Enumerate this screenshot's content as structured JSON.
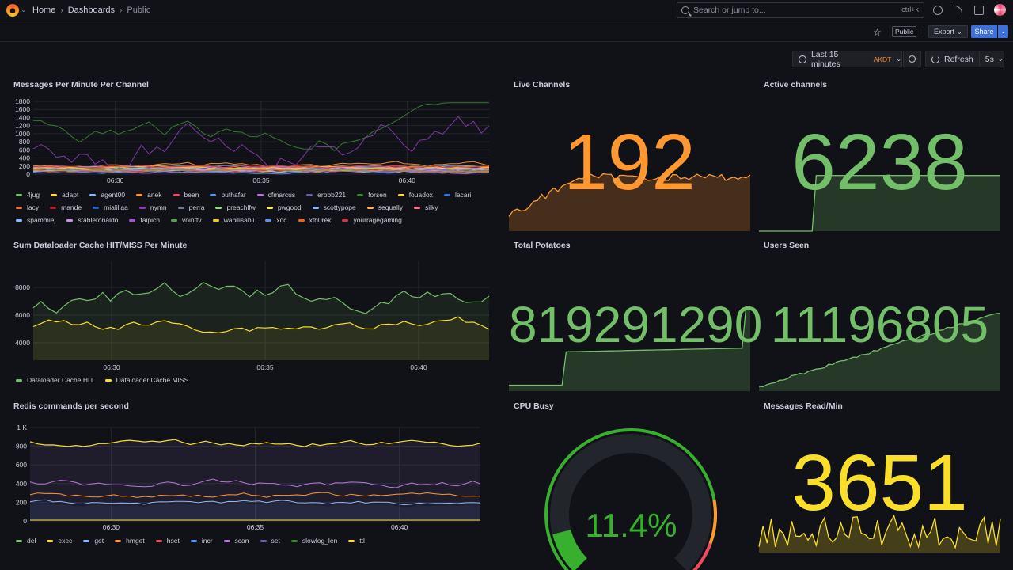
{
  "breadcrumb": {
    "home": "Home",
    "dashboards": "Dashboards",
    "current": "Public"
  },
  "search": {
    "placeholder": "Search or jump to...",
    "shortcut": "ctrl+k"
  },
  "toolbar": {
    "public_tag": "Public",
    "export_label": "Export",
    "share_label": "Share"
  },
  "time_picker": {
    "range": "Last 15 minutes",
    "tz": "AKDT"
  },
  "refresh": {
    "label": "Refresh",
    "interval": "5s"
  },
  "colors": {
    "green": "#73bf69",
    "orange": "#ff9830",
    "yellow": "#fade2a"
  },
  "panels": {
    "messages": {
      "title": "Messages Per Minute Per Channel",
      "y_ticks": [
        "1800",
        "1600",
        "1400",
        "1200",
        "1000",
        "800",
        "600",
        "400",
        "200",
        "0"
      ],
      "x_ticks": [
        "06:30",
        "06:35",
        "06:40"
      ],
      "legend": [
        {
          "name": "4jug",
          "color": "#73bf69"
        },
        {
          "name": "adapt",
          "color": "#fade2a"
        },
        {
          "name": "agent00",
          "color": "#8ab8ff"
        },
        {
          "name": "anek",
          "color": "#ff9830"
        },
        {
          "name": "bean",
          "color": "#f2495c"
        },
        {
          "name": "buthafar",
          "color": "#5794f2"
        },
        {
          "name": "cfmarcus",
          "color": "#b877d9"
        },
        {
          "name": "erobb221",
          "color": "#705da0"
        },
        {
          "name": "forsen",
          "color": "#37872d"
        },
        {
          "name": "fouadox",
          "color": "#fade2a"
        },
        {
          "name": "lacari",
          "color": "#3274d9"
        },
        {
          "name": "lacy",
          "color": "#e0752d"
        },
        {
          "name": "mande",
          "color": "#c4162a"
        },
        {
          "name": "mialiliaa",
          "color": "#1f60c4"
        },
        {
          "name": "nymn",
          "color": "#8f3bb8"
        },
        {
          "name": "perra",
          "color": "#6e7a8a"
        },
        {
          "name": "preachlfw",
          "color": "#96d98d"
        },
        {
          "name": "pwgood",
          "color": "#ffee52"
        },
        {
          "name": "scottypope",
          "color": "#8ab8ff"
        },
        {
          "name": "sequally",
          "color": "#ffb357"
        },
        {
          "name": "silky",
          "color": "#ff7383"
        },
        {
          "name": "spammiej",
          "color": "#8ab8ff"
        },
        {
          "name": "stableronaldo",
          "color": "#ca95e5"
        },
        {
          "name": "taipich",
          "color": "#a352cc"
        },
        {
          "name": "vointtv",
          "color": "#56a64b"
        },
        {
          "name": "wabilisabii",
          "color": "#f2cc0c"
        },
        {
          "name": "xqc",
          "color": "#5794f2"
        },
        {
          "name": "xth0rek",
          "color": "#fa6400"
        },
        {
          "name": "yourragegaming",
          "color": "#e02f44"
        }
      ]
    },
    "live_channels": {
      "title": "Live Channels",
      "value": "192"
    },
    "active_channels": {
      "title": "Active channels",
      "value": "6238"
    },
    "dataloader": {
      "title": "Sum Dataloader Cache HIT/MISS Per Minute",
      "y_ticks": [
        "8000",
        "6000",
        "4000"
      ],
      "x_ticks": [
        "06:30",
        "06:35",
        "06:40"
      ],
      "legend": [
        {
          "name": "Dataloader Cache HIT",
          "color": "#73bf69"
        },
        {
          "name": "Dataloader Cache MISS",
          "color": "#fade2a"
        }
      ]
    },
    "total_potatoes": {
      "title": "Total Potatoes",
      "value": "819291290"
    },
    "users_seen": {
      "title": "Users Seen",
      "value": "11196805"
    },
    "redis": {
      "title": "Redis commands per second",
      "y_ticks": [
        "1 K",
        "800",
        "600",
        "400",
        "200",
        "0"
      ],
      "x_ticks": [
        "06:30",
        "06:35",
        "06:40"
      ],
      "legend": [
        {
          "name": "del",
          "color": "#73bf69"
        },
        {
          "name": "exec",
          "color": "#fade2a"
        },
        {
          "name": "get",
          "color": "#8ab8ff"
        },
        {
          "name": "hmget",
          "color": "#ff9830"
        },
        {
          "name": "hset",
          "color": "#f2495c"
        },
        {
          "name": "incr",
          "color": "#5794f2"
        },
        {
          "name": "scan",
          "color": "#b877d9"
        },
        {
          "name": "set",
          "color": "#705da0"
        },
        {
          "name": "slowlog_len",
          "color": "#37872d"
        },
        {
          "name": "ttl",
          "color": "#fade2a"
        }
      ]
    },
    "cpu_busy": {
      "title": "CPU Busy",
      "value": "11.4%",
      "percent": 11.4
    },
    "messages_read": {
      "title": "Messages Read/Min",
      "value": "3651"
    }
  }
}
